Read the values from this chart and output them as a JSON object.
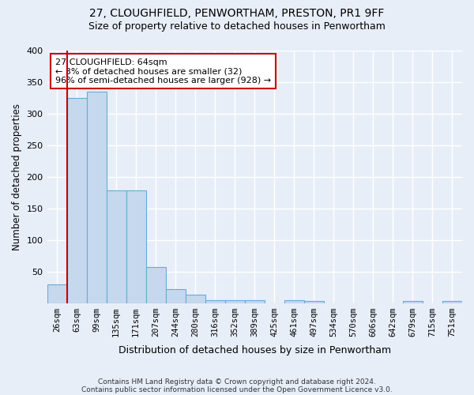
{
  "title_line1": "27, CLOUGHFIELD, PENWORTHAM, PRESTON, PR1 9FF",
  "title_line2": "Size of property relative to detached houses in Penwortham",
  "xlabel": "Distribution of detached houses by size in Penwortham",
  "ylabel": "Number of detached properties",
  "footer_line1": "Contains HM Land Registry data © Crown copyright and database right 2024.",
  "footer_line2": "Contains public sector information licensed under the Open Government Licence v3.0.",
  "categories": [
    "26sqm",
    "63sqm",
    "99sqm",
    "135sqm",
    "171sqm",
    "207sqm",
    "244sqm",
    "280sqm",
    "316sqm",
    "352sqm",
    "389sqm",
    "425sqm",
    "461sqm",
    "497sqm",
    "534sqm",
    "570sqm",
    "606sqm",
    "642sqm",
    "679sqm",
    "715sqm",
    "751sqm"
  ],
  "values": [
    30,
    325,
    335,
    178,
    178,
    57,
    22,
    13,
    5,
    5,
    5,
    0,
    5,
    3,
    0,
    0,
    0,
    0,
    3,
    0,
    3
  ],
  "bar_color": "#c5d8ee",
  "bar_edge_color": "#6aaad4",
  "marker_color": "#cc0000",
  "annotation_text": "27 CLOUGHFIELD: 64sqm\n← 3% of detached houses are smaller (32)\n96% of semi-detached houses are larger (928) →",
  "annotation_box_color": "#ffffff",
  "annotation_box_edge": "#cc0000",
  "ylim": [
    0,
    400
  ],
  "yticks": [
    0,
    50,
    100,
    150,
    200,
    250,
    300,
    350,
    400
  ],
  "bg_color": "#e8eef8",
  "plot_bg_color": "#e8eef8",
  "grid_color": "#ffffff",
  "title_fontsize": 10,
  "subtitle_fontsize": 9
}
